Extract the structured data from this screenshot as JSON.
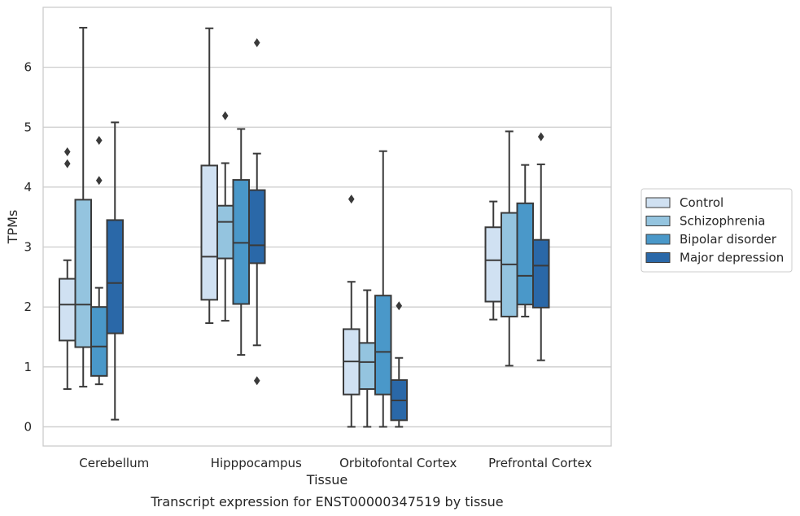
{
  "caption": "Transcript expression for ENST00000347519 by tissue",
  "chart_data": {
    "type": "box",
    "xlabel": "Tissue",
    "ylabel": "TPMs",
    "ylim": [
      -0.32,
      7.0
    ],
    "yticks": [
      0,
      1,
      2,
      3,
      4,
      5,
      6
    ],
    "grid": "y",
    "legend_position": "right",
    "categories": [
      "Cerebellum",
      "Hipppocampus",
      "Orbitofontal Cortex",
      "Prefrontal Cortex"
    ],
    "series": [
      {
        "name": "Control",
        "color": "#d0e1f2",
        "boxes": [
          {
            "whislo": 0.63,
            "q1": 1.44,
            "med": 2.04,
            "q3": 2.47,
            "whishi": 2.78,
            "fliers": [
              4.39,
              4.59
            ]
          },
          {
            "whislo": 1.73,
            "q1": 2.12,
            "med": 2.84,
            "q3": 4.36,
            "whishi": 6.65,
            "fliers": []
          },
          {
            "whislo": 0.0,
            "q1": 0.54,
            "med": 1.09,
            "q3": 1.63,
            "whishi": 2.42,
            "fliers": [
              3.8
            ]
          },
          {
            "whislo": 1.79,
            "q1": 2.09,
            "med": 2.78,
            "q3": 3.33,
            "whishi": 3.76,
            "fliers": []
          }
        ]
      },
      {
        "name": "Schizophrenia",
        "color": "#94c4df",
        "boxes": [
          {
            "whislo": 0.67,
            "q1": 1.33,
            "med": 2.04,
            "q3": 3.79,
            "whishi": 6.66,
            "fliers": []
          },
          {
            "whislo": 1.77,
            "q1": 2.81,
            "med": 3.42,
            "q3": 3.69,
            "whishi": 4.4,
            "fliers": [
              5.19
            ]
          },
          {
            "whislo": 0.0,
            "q1": 0.63,
            "med": 1.08,
            "q3": 1.4,
            "whishi": 2.28,
            "fliers": []
          },
          {
            "whislo": 1.02,
            "q1": 1.84,
            "med": 2.71,
            "q3": 3.57,
            "whishi": 4.93,
            "fliers": []
          }
        ]
      },
      {
        "name": "Bipolar disorder",
        "color": "#4a98c9",
        "boxes": [
          {
            "whislo": 0.71,
            "q1": 0.85,
            "med": 1.34,
            "q3": 2.0,
            "whishi": 2.32,
            "fliers": [
              4.11,
              4.78
            ]
          },
          {
            "whislo": 1.2,
            "q1": 2.05,
            "med": 3.07,
            "q3": 4.12,
            "whishi": 4.97,
            "fliers": []
          },
          {
            "whislo": 0.0,
            "q1": 0.54,
            "med": 1.25,
            "q3": 2.19,
            "whishi": 4.6,
            "fliers": []
          },
          {
            "whislo": 1.84,
            "q1": 2.04,
            "med": 2.52,
            "q3": 3.73,
            "whishi": 4.37,
            "fliers": []
          }
        ]
      },
      {
        "name": "Major depression",
        "color": "#2a68a8",
        "boxes": [
          {
            "whislo": 0.12,
            "q1": 1.56,
            "med": 2.4,
            "q3": 3.45,
            "whishi": 5.08,
            "fliers": []
          },
          {
            "whislo": 1.36,
            "q1": 2.73,
            "med": 3.03,
            "q3": 3.95,
            "whishi": 4.56,
            "fliers": [
              0.77,
              6.41
            ]
          },
          {
            "whislo": 0.0,
            "q1": 0.11,
            "med": 0.44,
            "q3": 0.78,
            "whishi": 1.15,
            "fliers": [
              2.02
            ]
          },
          {
            "whislo": 1.11,
            "q1": 1.99,
            "med": 2.69,
            "q3": 3.12,
            "whishi": 4.38,
            "fliers": [
              4.84
            ]
          }
        ]
      }
    ]
  }
}
